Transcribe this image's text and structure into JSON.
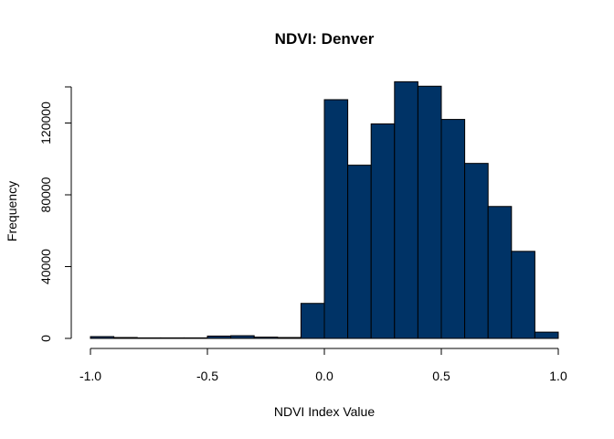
{
  "chart_data": {
    "type": "bar",
    "title": "NDVI: Denver",
    "xlabel": "NDVI Index Value",
    "ylabel": "Frequency",
    "xlim": [
      -1.0,
      1.0
    ],
    "ylim": [
      0,
      140000
    ],
    "x_ticks": [
      -1.0,
      -0.5,
      0.0,
      0.5,
      1.0
    ],
    "x_tick_labels": [
      "-1.0",
      "-0.5",
      "0.0",
      "0.5",
      "1.0"
    ],
    "y_ticks": [
      0,
      40000,
      80000,
      120000
    ],
    "y_tick_labels": [
      "0",
      "40000",
      "80000",
      "120000"
    ],
    "bar_color": "#003366",
    "grid": false,
    "bins": [
      {
        "x0": -1.0,
        "x1": -0.9,
        "count": 1000
      },
      {
        "x0": -0.9,
        "x1": -0.8,
        "count": 500
      },
      {
        "x0": -0.8,
        "x1": -0.7,
        "count": 300
      },
      {
        "x0": -0.7,
        "x1": -0.6,
        "count": 300
      },
      {
        "x0": -0.6,
        "x1": -0.5,
        "count": 300
      },
      {
        "x0": -0.5,
        "x1": -0.4,
        "count": 1300
      },
      {
        "x0": -0.4,
        "x1": -0.3,
        "count": 1500
      },
      {
        "x0": -0.3,
        "x1": -0.2,
        "count": 700
      },
      {
        "x0": -0.2,
        "x1": -0.1,
        "count": 500
      },
      {
        "x0": -0.1,
        "x1": 0.0,
        "count": 19500
      },
      {
        "x0": 0.0,
        "x1": 0.1,
        "count": 133000
      },
      {
        "x0": 0.1,
        "x1": 0.2,
        "count": 96500
      },
      {
        "x0": 0.2,
        "x1": 0.3,
        "count": 119500
      },
      {
        "x0": 0.3,
        "x1": 0.4,
        "count": 143000
      },
      {
        "x0": 0.4,
        "x1": 0.5,
        "count": 140500
      },
      {
        "x0": 0.5,
        "x1": 0.6,
        "count": 122000
      },
      {
        "x0": 0.6,
        "x1": 0.7,
        "count": 97500
      },
      {
        "x0": 0.7,
        "x1": 0.8,
        "count": 73500
      },
      {
        "x0": 0.8,
        "x1": 0.9,
        "count": 48500
      },
      {
        "x0": 0.9,
        "x1": 1.0,
        "count": 3500
      }
    ]
  }
}
